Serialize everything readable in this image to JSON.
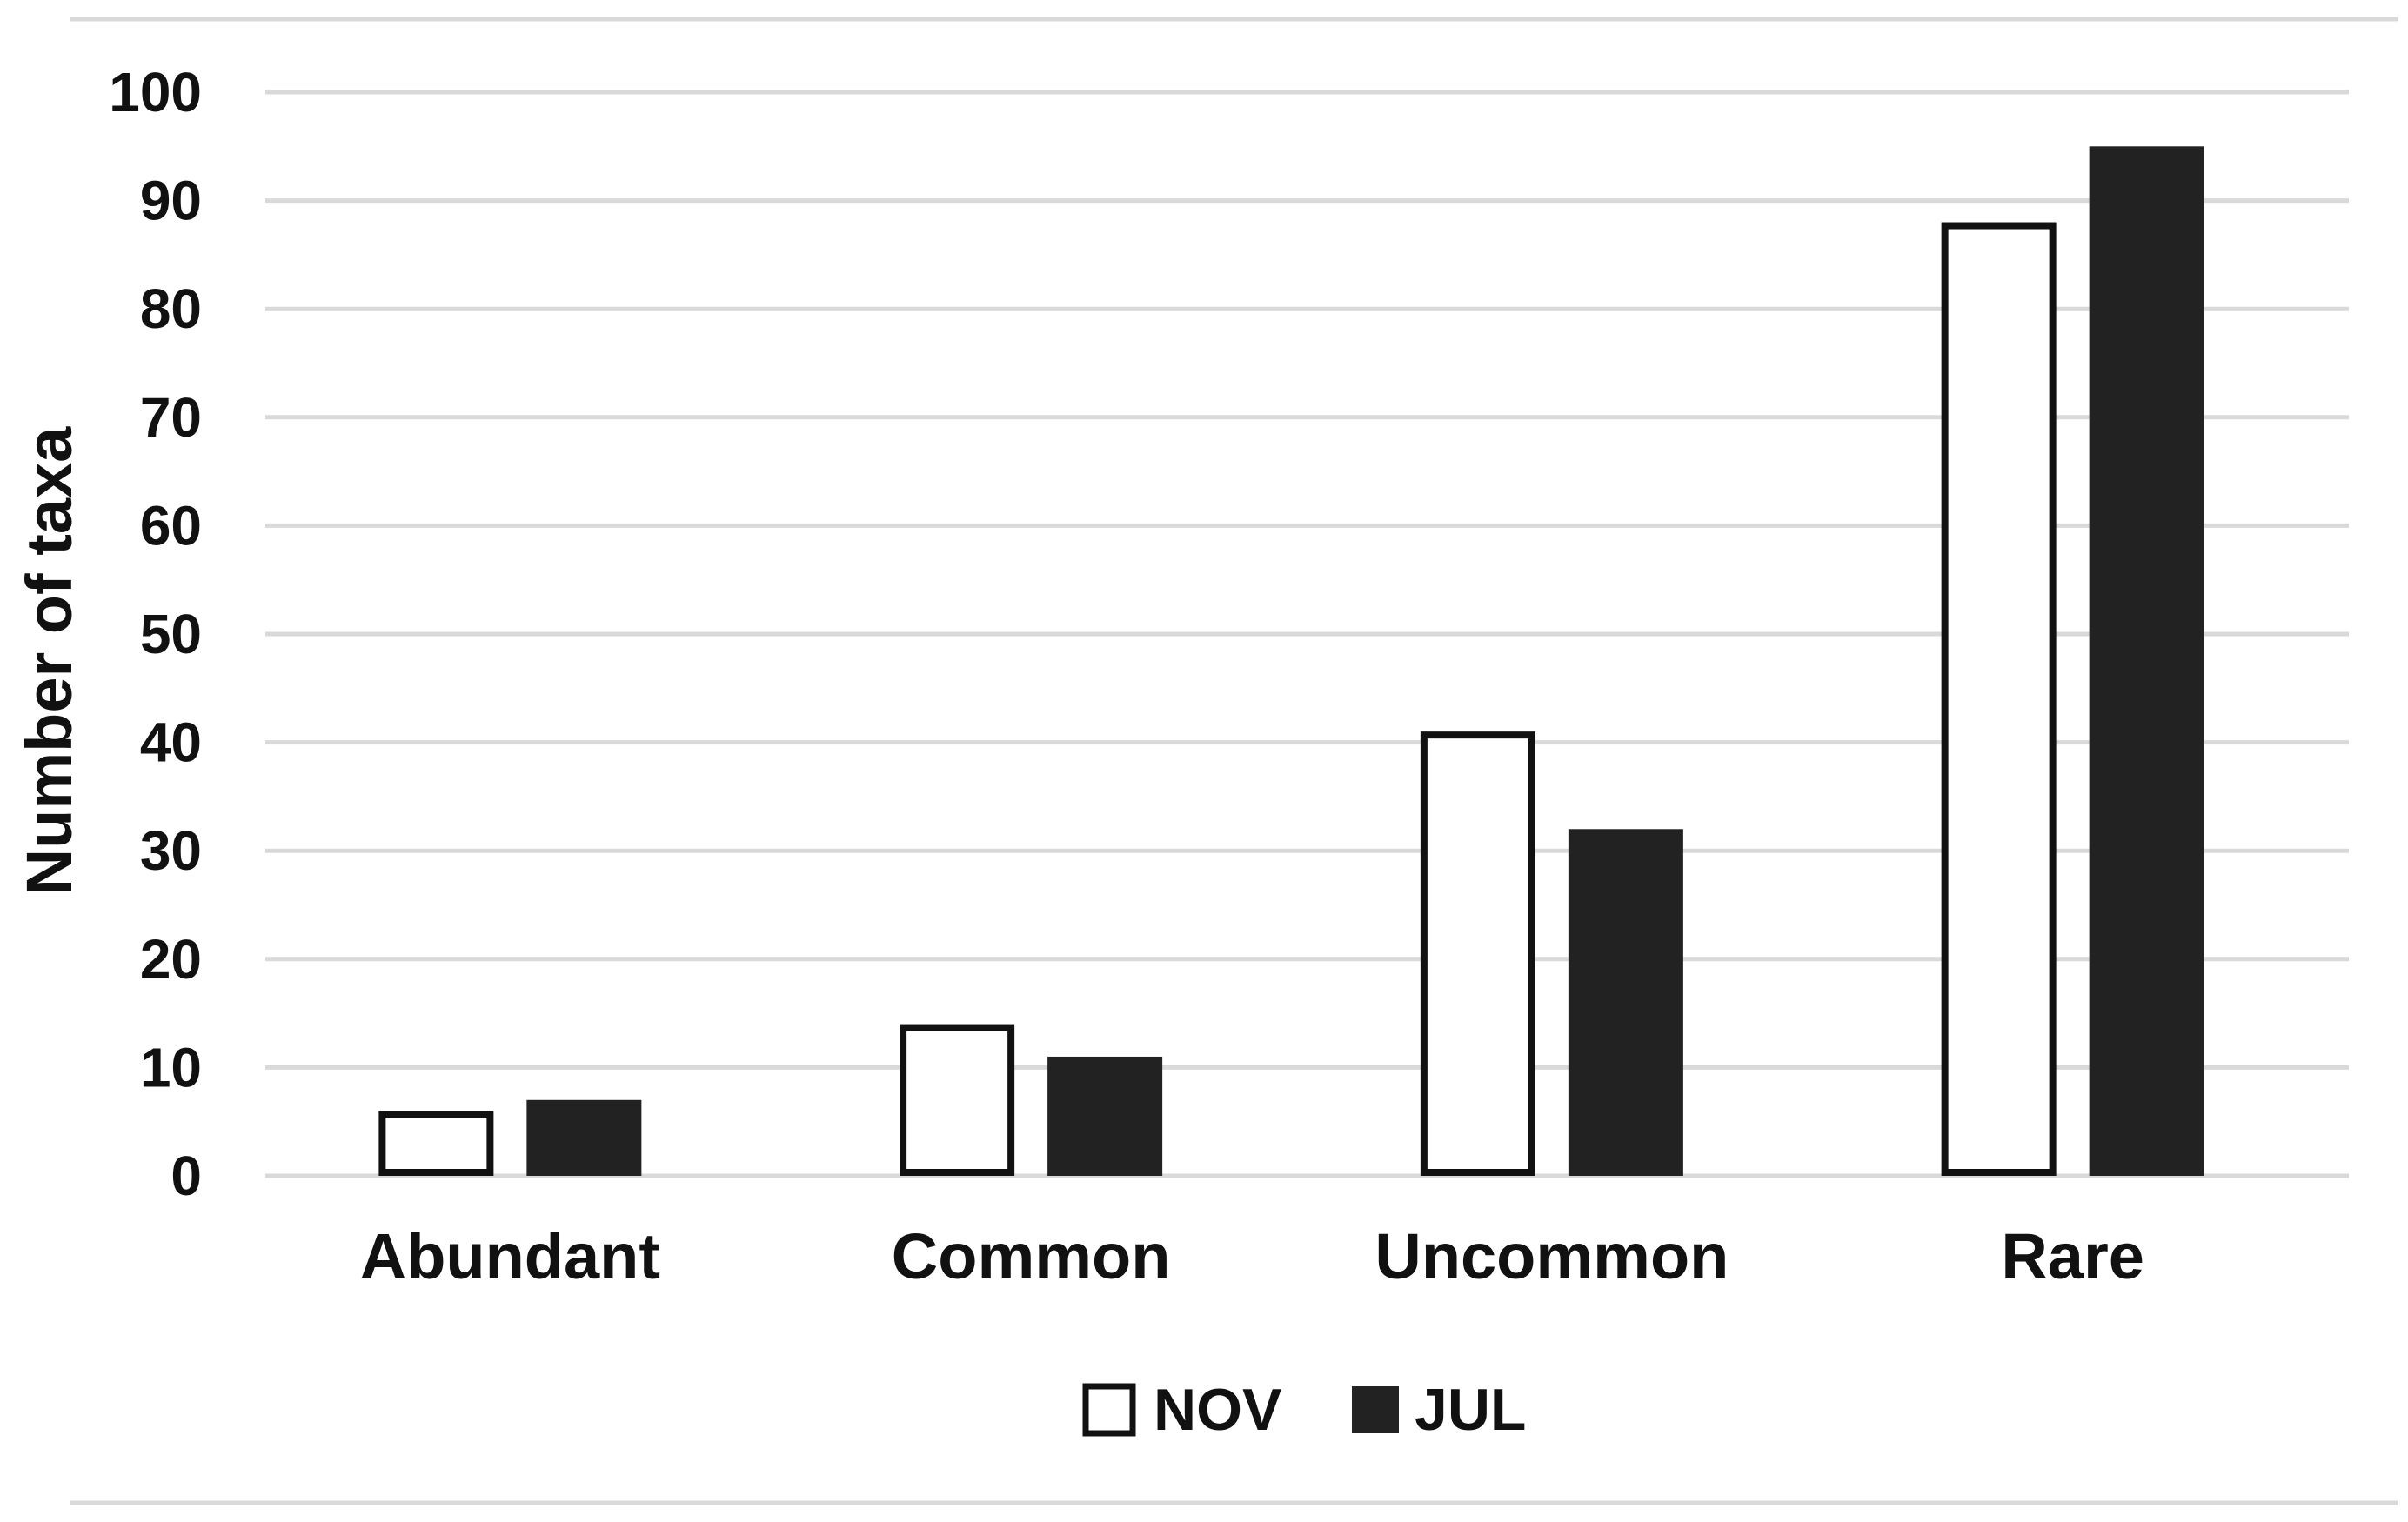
{
  "chart_data": {
    "type": "bar",
    "categories": [
      "Abundant",
      "Common",
      "Uncommon",
      "Rare"
    ],
    "series": [
      {
        "name": "NOV",
        "values": [
          6,
          14,
          41,
          88
        ],
        "fill": "#ffffff",
        "stroke": "#111111"
      },
      {
        "name": "JUL",
        "values": [
          7,
          11,
          32,
          95
        ],
        "fill": "#222222",
        "stroke": "#222222"
      }
    ],
    "title": "",
    "xlabel": "",
    "ylabel": "Number of taxa",
    "ylim": [
      0,
      100
    ],
    "yticks": [
      0,
      10,
      20,
      30,
      40,
      50,
      60,
      70,
      80,
      90,
      100
    ],
    "grid": true,
    "legend": "bottom-center",
    "colors": {
      "grid": "#d9d9d9",
      "text": "#111111"
    }
  }
}
